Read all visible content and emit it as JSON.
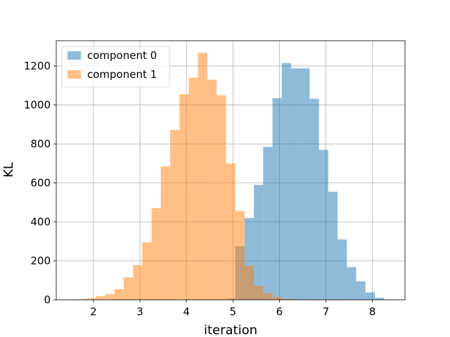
{
  "chart_data": {
    "type": "bar",
    "subtype": "histogram",
    "title": "",
    "xlabel": "iteration",
    "ylabel": "KL",
    "xlim": [
      1.2,
      8.7
    ],
    "ylim": [
      0,
      1330
    ],
    "xticks": [
      2,
      3,
      4,
      5,
      6,
      7,
      8
    ],
    "yticks": [
      0,
      200,
      400,
      600,
      800,
      1000,
      1200
    ],
    "grid": true,
    "legend_position": "top-left",
    "series": [
      {
        "name": "component 0",
        "color": "#1f77b4",
        "alpha": 0.5,
        "bins": [
          {
            "x0": 4.85,
            "x1": 5.05,
            "value": 5
          },
          {
            "x0": 5.05,
            "x1": 5.25,
            "value": 275
          },
          {
            "x0": 5.25,
            "x1": 5.45,
            "value": 420
          },
          {
            "x0": 5.45,
            "x1": 5.65,
            "value": 590
          },
          {
            "x0": 5.65,
            "x1": 5.85,
            "value": 785
          },
          {
            "x0": 5.85,
            "x1": 6.05,
            "value": 1035
          },
          {
            "x0": 6.05,
            "x1": 6.25,
            "value": 1215
          },
          {
            "x0": 6.25,
            "x1": 6.45,
            "value": 1188
          },
          {
            "x0": 6.45,
            "x1": 6.65,
            "value": 1188
          },
          {
            "x0": 6.65,
            "x1": 6.85,
            "value": 1032
          },
          {
            "x0": 6.85,
            "x1": 7.05,
            "value": 770
          },
          {
            "x0": 7.05,
            "x1": 7.25,
            "value": 555
          },
          {
            "x0": 7.25,
            "x1": 7.45,
            "value": 310
          },
          {
            "x0": 7.45,
            "x1": 7.65,
            "value": 168
          },
          {
            "x0": 7.65,
            "x1": 7.85,
            "value": 95
          },
          {
            "x0": 7.85,
            "x1": 8.05,
            "value": 38
          },
          {
            "x0": 8.05,
            "x1": 8.25,
            "value": 10
          }
        ]
      },
      {
        "name": "component 1",
        "color": "#ff7f0e",
        "alpha": 0.5,
        "bins": [
          {
            "x0": 1.45,
            "x1": 1.65,
            "value": 2
          },
          {
            "x0": 1.65,
            "x1": 1.85,
            "value": 3
          },
          {
            "x0": 1.85,
            "x1": 2.05,
            "value": 8
          },
          {
            "x0": 2.05,
            "x1": 2.25,
            "value": 18
          },
          {
            "x0": 2.25,
            "x1": 2.45,
            "value": 30
          },
          {
            "x0": 2.45,
            "x1": 2.65,
            "value": 55
          },
          {
            "x0": 2.65,
            "x1": 2.85,
            "value": 115
          },
          {
            "x0": 2.85,
            "x1": 3.05,
            "value": 178
          },
          {
            "x0": 3.05,
            "x1": 3.25,
            "value": 295
          },
          {
            "x0": 3.25,
            "x1": 3.45,
            "value": 470
          },
          {
            "x0": 3.45,
            "x1": 3.65,
            "value": 685
          },
          {
            "x0": 3.65,
            "x1": 3.85,
            "value": 872
          },
          {
            "x0": 3.85,
            "x1": 4.05,
            "value": 1055
          },
          {
            "x0": 4.05,
            "x1": 4.25,
            "value": 1140
          },
          {
            "x0": 4.25,
            "x1": 4.45,
            "value": 1268
          },
          {
            "x0": 4.45,
            "x1": 4.65,
            "value": 1130
          },
          {
            "x0": 4.65,
            "x1": 4.85,
            "value": 1050
          },
          {
            "x0": 4.85,
            "x1": 5.05,
            "value": 700
          },
          {
            "x0": 5.05,
            "x1": 5.25,
            "value": 455
          },
          {
            "x0": 5.25,
            "x1": 5.45,
            "value": 175
          },
          {
            "x0": 5.45,
            "x1": 5.65,
            "value": 72
          },
          {
            "x0": 5.65,
            "x1": 5.85,
            "value": 35
          },
          {
            "x0": 5.85,
            "x1": 6.05,
            "value": 15
          },
          {
            "x0": 6.05,
            "x1": 6.25,
            "value": 5
          }
        ]
      }
    ]
  }
}
